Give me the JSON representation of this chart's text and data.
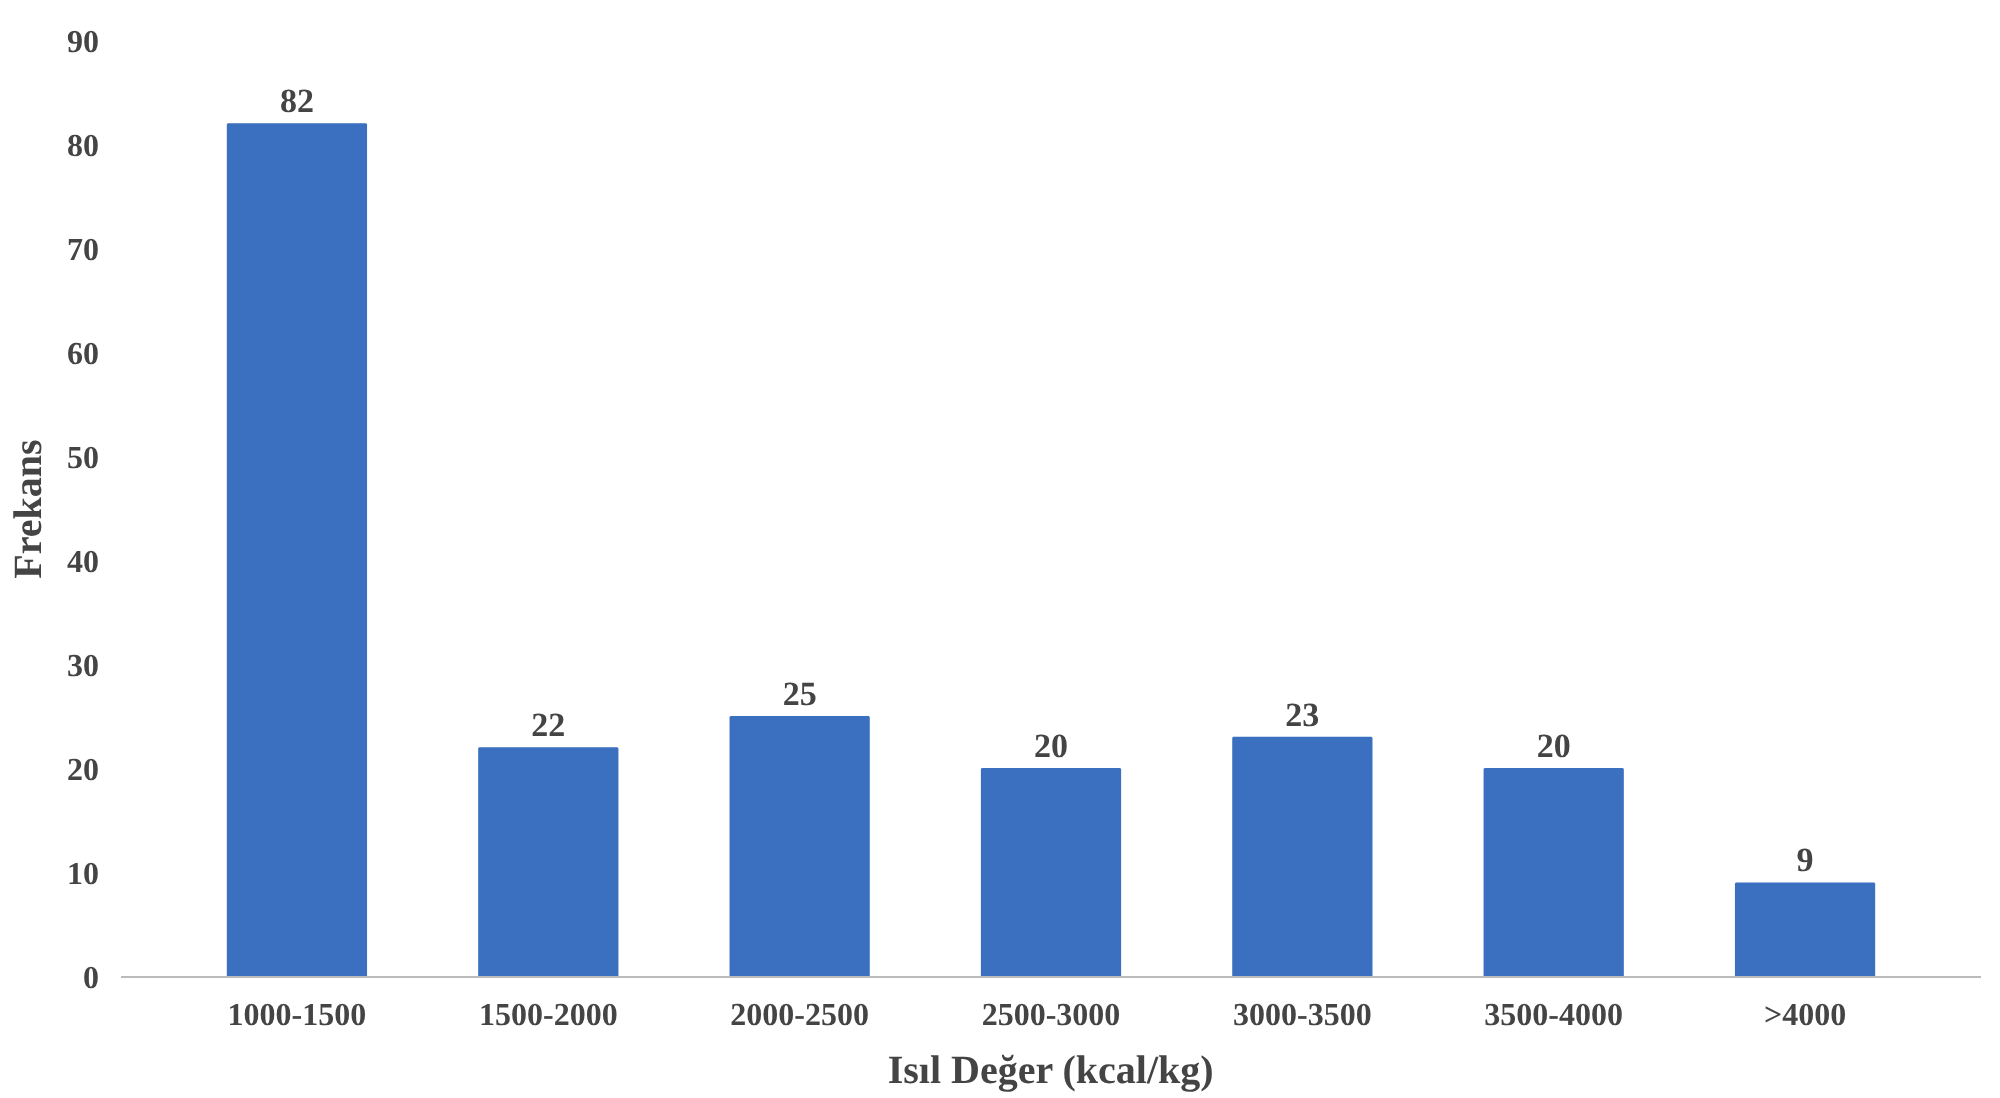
{
  "chart_data": {
    "type": "bar",
    "xlabel": "Isıl Değer (kcal/kg)",
    "ylabel": "Frekans",
    "categories": [
      "1000-1500",
      "1500-2000",
      "2000-2500",
      "2500-3000",
      "3000-3500",
      "3500-4000",
      ">4000"
    ],
    "values": [
      82,
      22,
      25,
      20,
      23,
      20,
      9
    ],
    "color": "#3b6fbf",
    "ylim": [
      0,
      90
    ],
    "yticks": [
      0,
      10,
      20,
      30,
      40,
      50,
      60,
      70,
      80,
      90
    ],
    "grid": false,
    "data_labels": true
  }
}
